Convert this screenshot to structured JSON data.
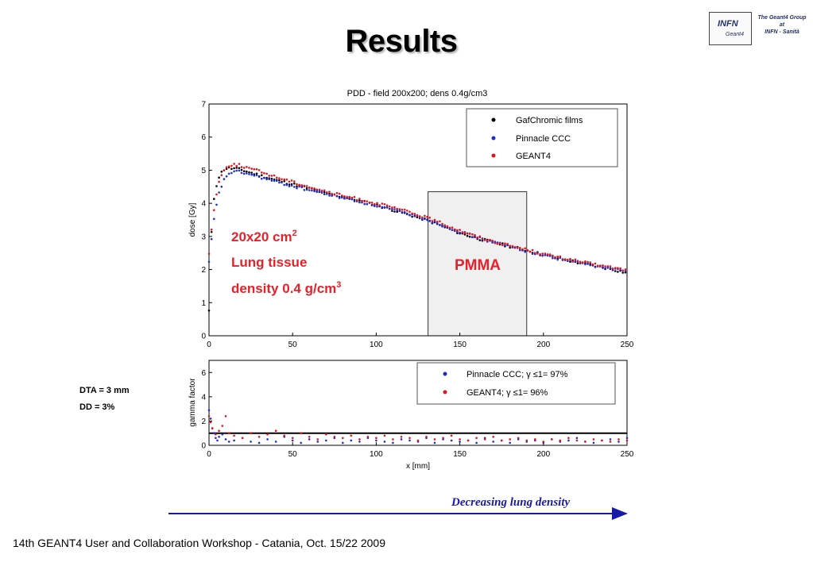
{
  "slide": {
    "title": "Results",
    "footer": "14th GEANT4 User and Collaboration Workshop - Catania, Oct. 15/22 2009",
    "logo": {
      "text": "INFN",
      "subtext": "Geant4",
      "caption": [
        "The Geant4 Group",
        "at",
        "INFN - Sanità"
      ]
    },
    "side_notes": [
      "DTA = 3 mm",
      "DD = 3%"
    ],
    "arrow_label": "Decreasing lung density",
    "colors": {
      "arrow": "#1a1aa8",
      "annotation": "#e8202a",
      "black_series": "#000000",
      "blue_series": "#1c2bd0",
      "red_series": "#e0141c"
    }
  },
  "annotations": {
    "region_label": "20x20 cm",
    "region_sup": "2",
    "tissue": "Lung tissue",
    "density_label": "density 0.4 g/cm",
    "density_sup": "3",
    "pmma": "PMMA",
    "pmma_range_mm": [
      131,
      190
    ],
    "pmma_top_gy": 4.35
  },
  "chart_data": [
    {
      "type": "scatter",
      "title": "PDD - field 200x200; dens 0.4g/cm3",
      "xlabel": "",
      "ylabel": "dose [Gy]",
      "xlim": [
        0,
        250
      ],
      "ylim": [
        0,
        7
      ],
      "xticks": [
        0,
        50,
        100,
        150,
        200,
        250
      ],
      "yticks": [
        0,
        1,
        2,
        3,
        4,
        5,
        6,
        7
      ],
      "legend": "top-right",
      "series": [
        {
          "name": "GafChromic films",
          "color": "#000000",
          "points": [
            [
              0,
              0.75
            ],
            [
              0.5,
              1.75
            ],
            [
              1,
              2.5
            ],
            [
              1.5,
              3.1
            ],
            [
              2,
              3.55
            ],
            [
              2.5,
              3.9
            ],
            [
              3,
              4.15
            ],
            [
              4,
              4.45
            ],
            [
              5,
              4.65
            ],
            [
              6,
              4.8
            ],
            [
              7,
              4.9
            ],
            [
              8,
              4.97
            ],
            [
              9,
              5.02
            ],
            [
              10,
              5.05
            ],
            [
              12,
              5.06
            ],
            [
              14,
              5.05
            ],
            [
              16,
              5.05
            ],
            [
              18,
              5.03
            ],
            [
              20,
              5.0
            ],
            [
              30,
              4.85
            ],
            [
              40,
              4.7
            ],
            [
              50,
              4.58
            ],
            [
              60,
              4.45
            ],
            [
              70,
              4.3
            ],
            [
              80,
              4.2
            ],
            [
              90,
              4.07
            ],
            [
              100,
              3.95
            ],
            [
              110,
              3.8
            ],
            [
              120,
              3.65
            ],
            [
              130,
              3.5
            ],
            [
              140,
              3.3
            ],
            [
              150,
              3.1
            ],
            [
              160,
              2.95
            ],
            [
              170,
              2.82
            ],
            [
              180,
              2.7
            ],
            [
              190,
              2.58
            ],
            [
              200,
              2.45
            ],
            [
              210,
              2.33
            ],
            [
              220,
              2.22
            ],
            [
              230,
              2.12
            ],
            [
              240,
              2.02
            ],
            [
              250,
              1.9
            ]
          ]
        },
        {
          "name": "Pinnacle CCC",
          "color": "#1c2bd0",
          "points": [
            [
              0,
              2.2
            ],
            [
              1,
              2.7
            ],
            [
              2,
              3.1
            ],
            [
              3,
              3.5
            ],
            [
              4,
              3.8
            ],
            [
              5,
              4.1
            ],
            [
              6,
              4.3
            ],
            [
              8,
              4.6
            ],
            [
              10,
              4.8
            ],
            [
              12,
              4.9
            ],
            [
              14,
              4.95
            ],
            [
              16,
              4.95
            ],
            [
              18,
              4.95
            ],
            [
              20,
              4.93
            ],
            [
              30,
              4.8
            ],
            [
              40,
              4.65
            ],
            [
              50,
              4.52
            ],
            [
              60,
              4.4
            ],
            [
              70,
              4.28
            ],
            [
              80,
              4.17
            ],
            [
              90,
              4.05
            ],
            [
              100,
              3.93
            ],
            [
              110,
              3.8
            ],
            [
              120,
              3.67
            ],
            [
              130,
              3.52
            ],
            [
              140,
              3.33
            ],
            [
              150,
              3.15
            ],
            [
              160,
              2.97
            ],
            [
              170,
              2.83
            ],
            [
              180,
              2.7
            ],
            [
              190,
              2.56
            ],
            [
              200,
              2.43
            ],
            [
              210,
              2.32
            ],
            [
              220,
              2.22
            ],
            [
              230,
              2.12
            ],
            [
              240,
              2.03
            ],
            [
              250,
              1.93
            ]
          ]
        },
        {
          "name": "GEANT4",
          "color": "#e0141c",
          "points": [
            [
              0,
              2.5
            ],
            [
              1,
              3.0
            ],
            [
              2,
              3.4
            ],
            [
              3,
              3.8
            ],
            [
              4,
              4.15
            ],
            [
              5,
              4.45
            ],
            [
              6,
              4.65
            ],
            [
              8,
              4.9
            ],
            [
              10,
              5.08
            ],
            [
              12,
              5.15
            ],
            [
              14,
              5.17
            ],
            [
              16,
              5.17
            ],
            [
              18,
              5.15
            ],
            [
              20,
              5.12
            ],
            [
              30,
              4.97
            ],
            [
              40,
              4.8
            ],
            [
              50,
              4.65
            ],
            [
              60,
              4.5
            ],
            [
              70,
              4.35
            ],
            [
              80,
              4.23
            ],
            [
              90,
              4.12
            ],
            [
              100,
              4.0
            ],
            [
              110,
              3.87
            ],
            [
              120,
              3.73
            ],
            [
              130,
              3.57
            ],
            [
              140,
              3.38
            ],
            [
              150,
              3.18
            ],
            [
              160,
              3.0
            ],
            [
              170,
              2.85
            ],
            [
              180,
              2.72
            ],
            [
              190,
              2.6
            ],
            [
              200,
              2.47
            ],
            [
              210,
              2.36
            ],
            [
              220,
              2.26
            ],
            [
              230,
              2.16
            ],
            [
              240,
              2.07
            ],
            [
              250,
              1.98
            ]
          ]
        }
      ]
    },
    {
      "type": "scatter",
      "title": "",
      "xlabel": "x [mm]",
      "ylabel": "gamma factor",
      "xlim": [
        0,
        250
      ],
      "ylim": [
        0,
        7
      ],
      "xticks": [
        0,
        50,
        100,
        150,
        200,
        250
      ],
      "yticks": [
        0,
        2,
        4,
        6
      ],
      "legend": "top-right",
      "reference_line": 1,
      "series": [
        {
          "name": "Pinnacle CCC; γ ≤1= 97%",
          "color": "#1c2bd0",
          "points": [
            [
              0,
              2.9
            ],
            [
              1,
              2.2
            ],
            [
              2,
              1.4
            ],
            [
              3,
              1.0
            ],
            [
              4,
              0.6
            ],
            [
              5,
              0.4
            ],
            [
              6,
              0.7
            ],
            [
              8,
              0.9
            ],
            [
              10,
              0.5
            ],
            [
              12,
              0.3
            ],
            [
              15,
              0.4
            ],
            [
              20,
              0.6
            ],
            [
              25,
              0.3
            ],
            [
              30,
              0.2
            ],
            [
              35,
              0.5
            ],
            [
              40,
              0.3
            ],
            [
              45,
              0.7
            ],
            [
              50,
              0.4
            ],
            [
              55,
              0.2
            ],
            [
              60,
              0.5
            ],
            [
              65,
              0.3
            ],
            [
              70,
              0.4
            ],
            [
              75,
              0.6
            ],
            [
              80,
              0.2
            ],
            [
              85,
              0.4
            ],
            [
              90,
              0.3
            ],
            [
              95,
              0.6
            ],
            [
              100,
              0.4
            ],
            [
              105,
              0.3
            ],
            [
              110,
              0.2
            ],
            [
              115,
              0.5
            ],
            [
              120,
              0.4
            ],
            [
              125,
              0.3
            ],
            [
              130,
              0.6
            ],
            [
              135,
              0.2
            ],
            [
              140,
              0.5
            ],
            [
              145,
              0.4
            ],
            [
              150,
              0.3
            ],
            [
              155,
              0.4
            ],
            [
              160,
              0.2
            ],
            [
              165,
              0.6
            ],
            [
              170,
              0.3
            ],
            [
              175,
              0.4
            ],
            [
              180,
              0.2
            ],
            [
              185,
              0.5
            ],
            [
              190,
              0.3
            ],
            [
              195,
              0.4
            ],
            [
              200,
              0.2
            ],
            [
              205,
              0.5
            ],
            [
              210,
              0.3
            ],
            [
              215,
              0.4
            ],
            [
              220,
              0.6
            ],
            [
              225,
              0.3
            ],
            [
              230,
              0.2
            ],
            [
              235,
              0.4
            ],
            [
              240,
              0.5
            ],
            [
              245,
              0.3
            ],
            [
              250,
              0.6
            ]
          ]
        },
        {
          "name": "GEANT4; γ ≤1= 96%",
          "color": "#e0141c",
          "points": [
            [
              0,
              2.4
            ],
            [
              1,
              1.9
            ],
            [
              2,
              1.4
            ],
            [
              4,
              0.9
            ],
            [
              6,
              1.2
            ],
            [
              8,
              1.6
            ],
            [
              10,
              2.4
            ],
            [
              12,
              1.0
            ],
            [
              15,
              0.8
            ],
            [
              20,
              0.6
            ],
            [
              25,
              1.0
            ],
            [
              30,
              0.7
            ],
            [
              35,
              0.9
            ],
            [
              40,
              1.2
            ],
            [
              45,
              0.8
            ],
            [
              50,
              0.6
            ],
            [
              55,
              1.0
            ],
            [
              60,
              0.7
            ],
            [
              65,
              0.5
            ],
            [
              70,
              0.9
            ],
            [
              75,
              0.7
            ],
            [
              80,
              0.6
            ],
            [
              85,
              0.8
            ],
            [
              90,
              0.5
            ],
            [
              95,
              0.7
            ],
            [
              100,
              0.6
            ],
            [
              105,
              0.8
            ],
            [
              110,
              0.5
            ],
            [
              115,
              0.7
            ],
            [
              120,
              0.6
            ],
            [
              125,
              0.4
            ],
            [
              130,
              0.7
            ],
            [
              135,
              0.5
            ],
            [
              140,
              0.6
            ],
            [
              145,
              0.8
            ],
            [
              150,
              0.5
            ],
            [
              155,
              0.4
            ],
            [
              160,
              0.6
            ],
            [
              165,
              0.5
            ],
            [
              170,
              0.7
            ],
            [
              175,
              0.4
            ],
            [
              180,
              0.5
            ],
            [
              185,
              0.6
            ],
            [
              190,
              0.4
            ],
            [
              195,
              0.5
            ],
            [
              200,
              0.3
            ],
            [
              205,
              0.5
            ],
            [
              210,
              0.4
            ],
            [
              215,
              0.6
            ],
            [
              220,
              0.4
            ],
            [
              225,
              0.3
            ],
            [
              230,
              0.5
            ],
            [
              235,
              0.4
            ],
            [
              240,
              0.3
            ],
            [
              245,
              0.5
            ],
            [
              250,
              0.4
            ]
          ]
        }
      ]
    }
  ]
}
